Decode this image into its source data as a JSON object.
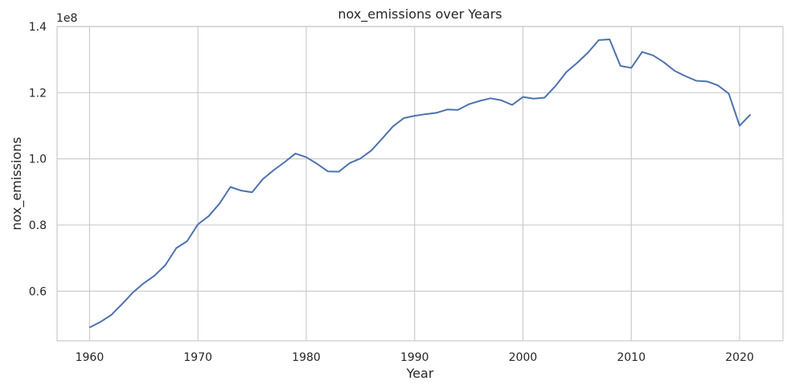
{
  "chart_data": {
    "type": "line",
    "title": "nox_emissions over Years",
    "xlabel": "Year",
    "ylabel": "nox_emissions",
    "y_offset_label": "1e8",
    "xlim": [
      1957,
      2024
    ],
    "ylim": [
      0.45,
      1.4
    ],
    "x_ticks": [
      1960,
      1970,
      1980,
      1990,
      2000,
      2010,
      2020
    ],
    "x_tick_labels": [
      "1960",
      "1970",
      "1980",
      "1990",
      "2000",
      "2010",
      "2020"
    ],
    "y_ticks": [
      0.6,
      0.8,
      1.0,
      1.2,
      1.4
    ],
    "y_tick_labels": [
      "0.6",
      "0.8",
      "1.0",
      "1.2",
      "1.4"
    ],
    "grid": true,
    "style": {
      "line_color": "#4c72b0",
      "grid_color": "#cccccc",
      "frame_color": "#cccccc"
    },
    "series": [
      {
        "x": [
          1960,
          1961,
          1962,
          1963,
          1964,
          1965,
          1966,
          1967,
          1968,
          1969,
          1970,
          1971,
          1972,
          1973,
          1974,
          1975,
          1976,
          1977,
          1978,
          1979,
          1980,
          1981,
          1982,
          1983,
          1984,
          1985,
          1986,
          1987,
          1988,
          1989,
          1990,
          1991,
          1992,
          1993,
          1994,
          1995,
          1996,
          1997,
          1998,
          1999,
          2000,
          2001,
          2002,
          2003,
          2004,
          2005,
          2006,
          2007,
          2008,
          2009,
          2010,
          2011,
          2012,
          2013,
          2014,
          2015,
          2016,
          2017,
          2018,
          2019,
          2020,
          2021
        ],
        "values": [
          0.49,
          0.507,
          0.528,
          0.561,
          0.596,
          0.624,
          0.647,
          0.679,
          0.73,
          0.751,
          0.802,
          0.827,
          0.865,
          0.915,
          0.904,
          0.899,
          0.939,
          0.966,
          0.99,
          1.016,
          1.005,
          0.985,
          0.962,
          0.961,
          0.987,
          1.001,
          1.025,
          1.061,
          1.098,
          1.123,
          1.13,
          1.135,
          1.139,
          1.149,
          1.148,
          1.165,
          1.175,
          1.183,
          1.177,
          1.163,
          1.187,
          1.182,
          1.185,
          1.22,
          1.262,
          1.29,
          1.321,
          1.359,
          1.361,
          1.281,
          1.275,
          1.323,
          1.313,
          1.292,
          1.266,
          1.25,
          1.236,
          1.234,
          1.222,
          1.197,
          1.1,
          1.134
        ]
      }
    ]
  }
}
